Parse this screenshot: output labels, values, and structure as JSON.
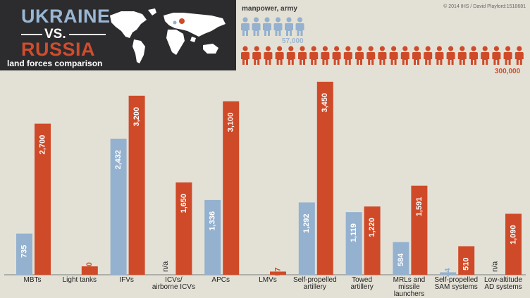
{
  "header": {
    "title_ukraine": "UKRAINE",
    "title_vs": "VS.",
    "title_russia": "RUSSIA",
    "subtitle": "land forces comparison"
  },
  "manpower": {
    "label": "manpower, army",
    "ukraine_value": "57,000",
    "russia_value": "300,000",
    "ukraine_figures": 6,
    "russia_figures": 25
  },
  "copyright": "© 2014 IHS / David Playford:1518681",
  "colors": {
    "ukraine": "#94b1cf",
    "russia": "#cf4a28",
    "header_bg": "#2c2c2f",
    "background": "#e3e1d6"
  },
  "chart_data": {
    "type": "bar",
    "categories": [
      [
        "MBTs"
      ],
      [
        "Light tanks"
      ],
      [
        "IFVs"
      ],
      [
        "ICVs/",
        "airborne ICVs"
      ],
      [
        "APCs"
      ],
      [
        "LMVs"
      ],
      [
        "Self-propelled",
        "artillery"
      ],
      [
        "Towed",
        "artillery"
      ],
      [
        "MRLs and",
        "missile",
        "launchers"
      ],
      [
        "Self-propelled",
        "SAM systems"
      ],
      [
        "Low-altitude",
        "AD systems"
      ]
    ],
    "series": [
      {
        "values": [
          735,
          null,
          2432,
          null,
          1336,
          null,
          1292,
          1119,
          584,
          44,
          null
        ],
        "labels": [
          "735",
          "",
          "2,432",
          "n/a",
          "1,336",
          "",
          "1,292",
          "1,119",
          "584",
          "44",
          "n/a"
        ]
      },
      {
        "values": [
          2700,
          150,
          3200,
          1650,
          3100,
          57,
          3450,
          1220,
          1591,
          510,
          1090
        ],
        "labels": [
          "2,700",
          "150",
          "3,200",
          "1,650",
          "3,100",
          "57",
          "3,450",
          "1,220",
          "1,591",
          "510",
          "1,090"
        ]
      }
    ],
    "ylim": [
      0,
      3450
    ]
  }
}
